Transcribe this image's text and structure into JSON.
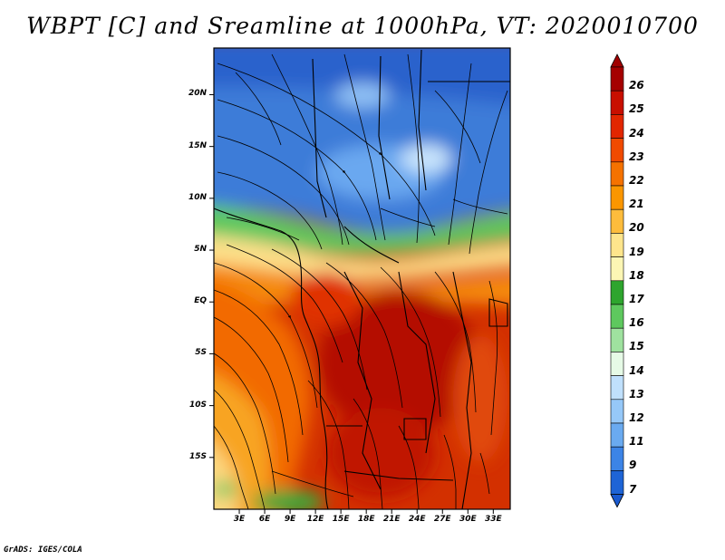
{
  "title": "WBPT [C] and Sreamline at 1000hPa, VT: 2020010700",
  "credit": "GrADS: IGES/COLA",
  "map": {
    "lat_ticks": [
      {
        "label": "20N",
        "lat": 20
      },
      {
        "label": "15N",
        "lat": 15
      },
      {
        "label": "10N",
        "lat": 10
      },
      {
        "label": "5N",
        "lat": 5
      },
      {
        "label": "EQ",
        "lat": 0
      },
      {
        "label": "5S",
        "lat": -5
      },
      {
        "label": "10S",
        "lat": -10
      },
      {
        "label": "15S",
        "lat": -15
      }
    ],
    "lon_ticks": [
      {
        "label": "3E",
        "lon": 3
      },
      {
        "label": "6E",
        "lon": 6
      },
      {
        "label": "9E",
        "lon": 9
      },
      {
        "label": "12E",
        "lon": 12
      },
      {
        "label": "15E",
        "lon": 15
      },
      {
        "label": "18E",
        "lon": 18
      },
      {
        "label": "21E",
        "lon": 21
      },
      {
        "label": "24E",
        "lon": 24
      },
      {
        "label": "27E",
        "lon": 27
      },
      {
        "label": "30E",
        "lon": 30
      },
      {
        "label": "33E",
        "lon": 33
      }
    ],
    "lon_range": [
      0,
      35
    ],
    "lat_range": [
      -20,
      24.5
    ]
  },
  "colorbar": {
    "labels": [
      "26",
      "25",
      "24",
      "23",
      "22",
      "21",
      "20",
      "19",
      "18",
      "17",
      "16",
      "15",
      "14",
      "13",
      "12",
      "11",
      "9",
      "7"
    ],
    "colors": [
      "#a50000",
      "#c80f00",
      "#e22600",
      "#f04a00",
      "#f57200",
      "#fa9600",
      "#fdbc3c",
      "#fee58c",
      "#fcf6b4",
      "#2ea52e",
      "#5ec85e",
      "#9fe29f",
      "#e6fae6",
      "#c0e0fc",
      "#96c8f8",
      "#6aaaf0",
      "#3c84e6",
      "#1e64d6"
    ],
    "top_color": "#a00000",
    "bottom_color": "#1a5ad0"
  }
}
